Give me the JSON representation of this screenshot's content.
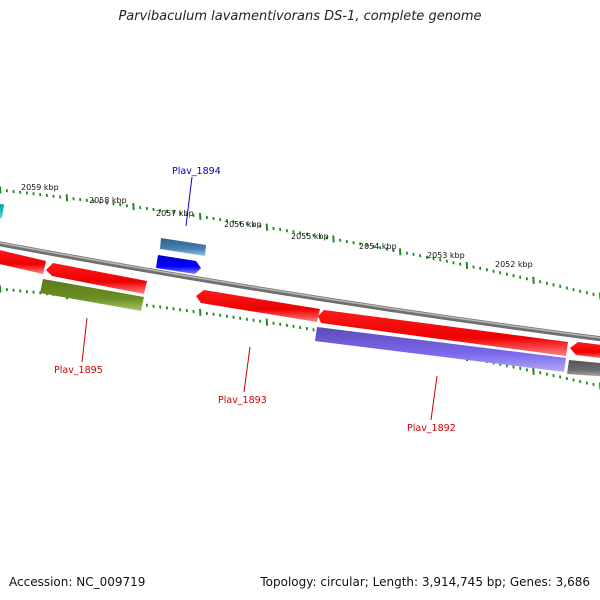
{
  "title": "Parvibaculum lavamentivorans DS-1, complete genome",
  "footer": {
    "accession": "Accession: NC_009719",
    "summary": "Topology: circular; Length: 3,914,745 bp; Genes: 3,686"
  },
  "colors": {
    "backbone": "#8a8a8a",
    "tick": "#1f8a1f",
    "label_red": "#cc0000",
    "label_blue": "#0000bb"
  },
  "scale_ticks": [
    "2059 kbp",
    "2058 kbp",
    "2057 kbp",
    "2056 kbp",
    "2055 kbp",
    "2054 kbp",
    "2053 kbp",
    "2052 kbp"
  ],
  "gene_labels": [
    {
      "text": "Plav_1894",
      "color": "#0000bb"
    },
    {
      "text": "Plav_1895",
      "color": "#cc0000"
    },
    {
      "text": "Plav_1893",
      "color": "#cc0000"
    },
    {
      "text": "Plav_1892",
      "color": "#cc0000"
    }
  ]
}
